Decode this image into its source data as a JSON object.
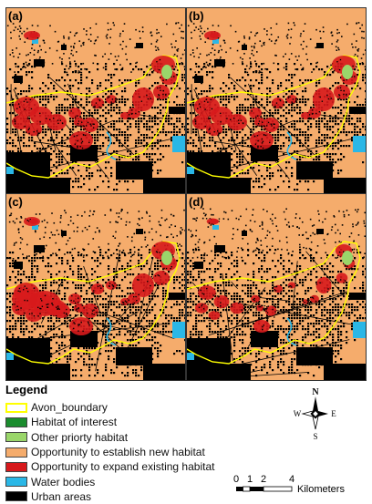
{
  "panels": [
    {
      "label": "(a)",
      "variant": "a"
    },
    {
      "label": "(b)",
      "variant": "b"
    },
    {
      "label": "(c)",
      "variant": "c"
    },
    {
      "label": "(d)",
      "variant": "d"
    }
  ],
  "legend": {
    "title": "Legend",
    "items": [
      {
        "label": "Avon_boundary",
        "color": "#ffff00",
        "kind": "outline"
      },
      {
        "label": "Habitat of interest",
        "color": "#1a8c2e",
        "kind": "fill"
      },
      {
        "label": "Other priorty habitat",
        "color": "#9ad66a",
        "kind": "fill"
      },
      {
        "label": "Opportunity to establish new habitat",
        "color": "#f5ac6c",
        "kind": "fill"
      },
      {
        "label": "Opportunity to expand existing habitat",
        "color": "#d7191c",
        "kind": "fill"
      },
      {
        "label": "Water bodies",
        "color": "#2ab7e6",
        "kind": "fill"
      },
      {
        "label": "Urban areas",
        "color": "#000000",
        "kind": "fill"
      }
    ]
  },
  "compass": {
    "n": "N",
    "s": "S",
    "e": "E",
    "w": "W"
  },
  "scale": {
    "ticks": [
      "0",
      "1",
      "2",
      "4"
    ],
    "unit": "Kilometers"
  },
  "colors": {
    "background": "#f5ac6c",
    "urban": "#000000",
    "expand": "#d7191c",
    "other_priority": "#9ad66a",
    "water": "#2ab7e6",
    "boundary": "#ffff00"
  }
}
